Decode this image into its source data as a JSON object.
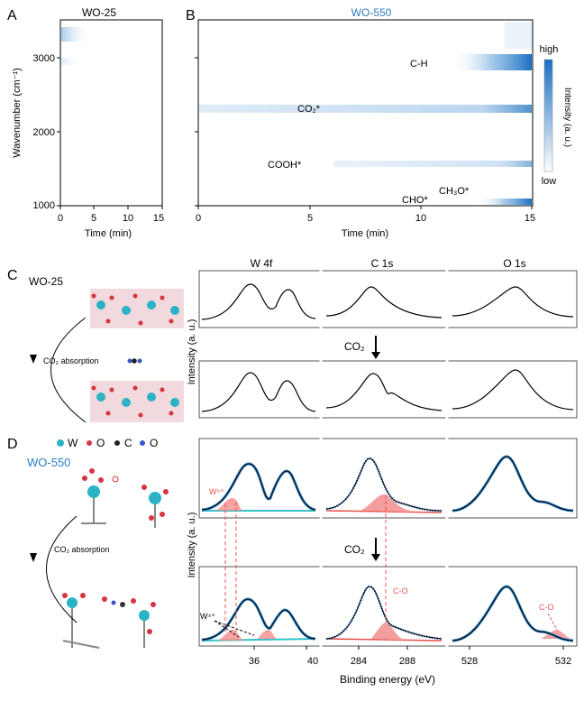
{
  "panels": {
    "A": "A",
    "B": "B",
    "C": "C",
    "D": "D"
  },
  "panel_a": {
    "title": "WO-25",
    "ylabel": "Wavenumber (cm⁻¹)",
    "xlabel": "Time (min)",
    "y_ticks": [
      "3000",
      "2000",
      "1000"
    ],
    "x_ticks": [
      "0",
      "5",
      "10",
      "15"
    ]
  },
  "panel_b": {
    "title": "WO-550",
    "xlabel": "Time (min)",
    "x_ticks": [
      "0",
      "5",
      "10",
      "15"
    ],
    "annotations": {
      "ch": "C-H",
      "co2": "CO₂*",
      "cooh": "COOH*",
      "ch3o": "CH₃O*",
      "cho": "CHO*"
    },
    "colorbar": {
      "high": "high",
      "low": "low",
      "label": "Intensity (a. u.)"
    }
  },
  "panel_c": {
    "sample": "WO-25",
    "process": "CO₂ absorption",
    "arrow_label": "CO₂",
    "column_titles": [
      "W 4f",
      "C 1s",
      "O 1s"
    ]
  },
  "panel_d": {
    "sample": "WO-550",
    "process": "CO₂ absorption",
    "arrow_label": "CO₂",
    "legend": [
      "W",
      "O",
      "C",
      "O"
    ],
    "annotations": {
      "w5": "W⁵⁺",
      "w4": "W⁴⁺",
      "co_c": "C-O",
      "co_o": "C-O"
    },
    "x_ticks_w": [
      "36",
      "40"
    ],
    "x_ticks_c": [
      "284",
      "288"
    ],
    "x_ticks_o": [
      "528",
      "532"
    ]
  },
  "shared": {
    "intensity_label": "Intensity (a. u.)",
    "binding_energy": "Binding energy (eV)"
  },
  "colors": {
    "accent": "#2f7fc1",
    "red": "#e8534f",
    "cyan": "#33c4c9"
  }
}
